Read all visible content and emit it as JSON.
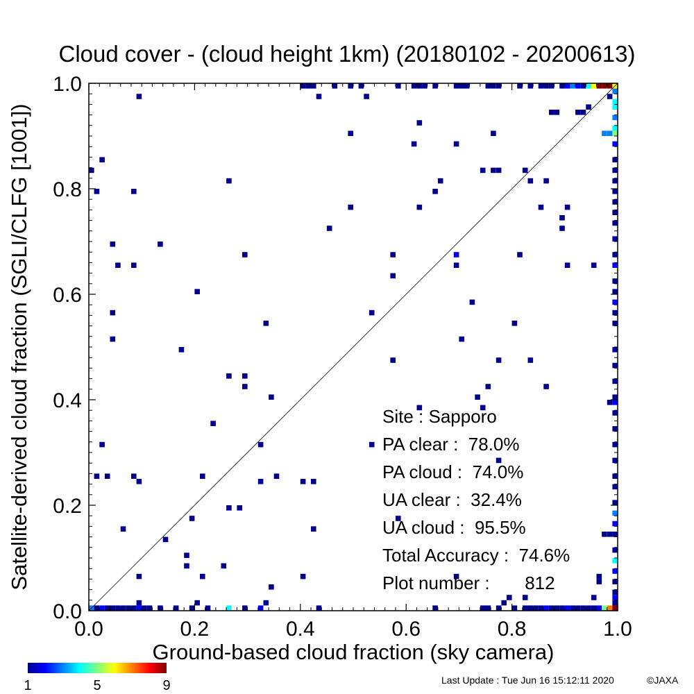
{
  "chart_data": {
    "type": "heatmap",
    "title": "Cloud cover - (cloud height 1km)  (20180102 - 20200613)",
    "xlabel": "Ground-based cloud fraction (sky camera)",
    "ylabel": "Satellite-derived cloud fraction (SGLI/CLFG [1001])",
    "xlim": [
      0,
      1
    ],
    "ylim": [
      0,
      1
    ],
    "xticks": [
      "0.0",
      "0.2",
      "0.4",
      "0.6",
      "0.8",
      "1.0"
    ],
    "yticks": [
      "0.0",
      "0.2",
      "0.4",
      "0.6",
      "0.8",
      "1.0"
    ],
    "diagonal_reference_line": true,
    "colorbar": {
      "min": 1,
      "max": 9,
      "tick_labels": [
        "1",
        "5",
        "9"
      ],
      "colormap": "jet"
    },
    "stats": [
      "Site : Sapporo",
      "PA clear :  78.0%",
      "PA cloud :  74.0%",
      "UA clear :  32.4%",
      "UA cloud :  95.5%",
      "Total Accuracy :  74.6%",
      "Plot number :       812"
    ],
    "points": [
      [
        0.095,
        0.975,
        1
      ],
      [
        0.025,
        0.855,
        1
      ],
      [
        0.005,
        0.835,
        1
      ],
      [
        0.015,
        0.795,
        1
      ],
      [
        0.085,
        0.795,
        1
      ],
      [
        0.265,
        0.815,
        1
      ],
      [
        0.045,
        0.695,
        1
      ],
      [
        0.135,
        0.695,
        1
      ],
      [
        0.055,
        0.655,
        1
      ],
      [
        0.085,
        0.655,
        1
      ],
      [
        0.295,
        0.675,
        1
      ],
      [
        0.205,
        0.605,
        1
      ],
      [
        0.045,
        0.565,
        1
      ],
      [
        0.335,
        0.545,
        1
      ],
      [
        0.045,
        0.515,
        1
      ],
      [
        0.175,
        0.495,
        1
      ],
      [
        0.265,
        0.445,
        1
      ],
      [
        0.295,
        0.445,
        1
      ],
      [
        0.295,
        0.425,
        1
      ],
      [
        0.345,
        0.405,
        1
      ],
      [
        0.235,
        0.355,
        1
      ],
      [
        0.025,
        0.315,
        1
      ],
      [
        0.325,
        0.315,
        1
      ],
      [
        0.015,
        0.255,
        1
      ],
      [
        0.035,
        0.255,
        1
      ],
      [
        0.085,
        0.255,
        1
      ],
      [
        0.095,
        0.245,
        1
      ],
      [
        0.215,
        0.255,
        1
      ],
      [
        0.325,
        0.245,
        1
      ],
      [
        0.355,
        0.255,
        1
      ],
      [
        0.405,
        0.245,
        1
      ],
      [
        0.425,
        0.245,
        1
      ],
      [
        0.265,
        0.195,
        1
      ],
      [
        0.285,
        0.195,
        1
      ],
      [
        0.195,
        0.175,
        1
      ],
      [
        0.065,
        0.155,
        1
      ],
      [
        0.425,
        0.155,
        1
      ],
      [
        0.145,
        0.135,
        1
      ],
      [
        0.185,
        0.105,
        1
      ],
      [
        0.185,
        0.085,
        1
      ],
      [
        0.255,
        0.085,
        1
      ],
      [
        0.095,
        0.065,
        1
      ],
      [
        0.215,
        0.065,
        1
      ],
      [
        0.405,
        0.065,
        1
      ],
      [
        0.345,
        0.045,
        1
      ],
      [
        0.095,
        0.015,
        1
      ],
      [
        0.205,
        0.015,
        1
      ],
      [
        0.335,
        0.015,
        1
      ],
      [
        0.435,
        0.975,
        1
      ],
      [
        0.495,
        0.905,
        1
      ],
      [
        0.525,
        0.975,
        1
      ],
      [
        0.455,
        0.725,
        1
      ],
      [
        0.495,
        0.765,
        1
      ],
      [
        0.535,
        0.565,
        1
      ],
      [
        0.575,
        0.675,
        1
      ],
      [
        0.575,
        0.635,
        1
      ],
      [
        0.575,
        0.475,
        1
      ],
      [
        0.535,
        0.315,
        1
      ],
      [
        0.585,
        0.175,
        1
      ],
      [
        0.625,
        0.925,
        1
      ],
      [
        0.615,
        0.885,
        1
      ],
      [
        0.695,
        0.885,
        1
      ],
      [
        0.625,
        0.765,
        1
      ],
      [
        0.655,
        0.795,
        1
      ],
      [
        0.665,
        0.815,
        1
      ],
      [
        0.745,
        0.835,
        1
      ],
      [
        0.765,
        0.835,
        1
      ],
      [
        0.775,
        0.835,
        1
      ],
      [
        0.765,
        0.905,
        1
      ],
      [
        0.695,
        0.675,
        2
      ],
      [
        0.695,
        0.655,
        1
      ],
      [
        0.725,
        0.585,
        1
      ],
      [
        0.705,
        0.515,
        1
      ],
      [
        0.775,
        0.475,
        1
      ],
      [
        0.735,
        0.405,
        1
      ],
      [
        0.745,
        0.385,
        1
      ],
      [
        0.755,
        0.425,
        1
      ],
      [
        0.625,
        0.385,
        1
      ],
      [
        0.775,
        0.285,
        1
      ],
      [
        0.695,
        0.065,
        1
      ],
      [
        0.825,
        0.835,
        1
      ],
      [
        0.835,
        0.815,
        1
      ],
      [
        0.865,
        0.815,
        1
      ],
      [
        0.855,
        0.765,
        1
      ],
      [
        0.815,
        0.675,
        1
      ],
      [
        0.805,
        0.545,
        1
      ],
      [
        0.835,
        0.475,
        1
      ],
      [
        0.865,
        0.425,
        1
      ],
      [
        0.875,
        0.945,
        1
      ],
      [
        0.885,
        0.945,
        1
      ],
      [
        0.925,
        0.945,
        1
      ],
      [
        0.935,
        0.945,
        1
      ],
      [
        0.945,
        0.955,
        1
      ],
      [
        0.905,
        0.765,
        1
      ],
      [
        0.895,
        0.745,
        1
      ],
      [
        0.895,
        0.725,
        1
      ],
      [
        0.905,
        0.655,
        1
      ],
      [
        0.955,
        0.655,
        1
      ],
      [
        0.785,
        0.015,
        1
      ],
      [
        0.795,
        0.025,
        1
      ],
      [
        0.825,
        0.025,
        1
      ],
      [
        0.955,
        0.025,
        1
      ],
      [
        0.965,
        0.055,
        1
      ],
      [
        0.975,
        0.905,
        3
      ],
      [
        0.985,
        0.905,
        3
      ],
      [
        0.985,
        0.975,
        1
      ],
      [
        0.985,
        0.395,
        1
      ],
      [
        0.985,
        0.145,
        1
      ],
      [
        0.975,
        0.145,
        1
      ],
      [
        0.965,
        0.065,
        1
      ]
    ],
    "top_row": [
      [
        0.405,
        1
      ],
      [
        0.415,
        1
      ],
      [
        0.425,
        1
      ],
      [
        0.465,
        1
      ],
      [
        0.495,
        1
      ],
      [
        0.515,
        1
      ],
      [
        0.585,
        1
      ],
      [
        0.615,
        1
      ],
      [
        0.625,
        1
      ],
      [
        0.635,
        1
      ],
      [
        0.655,
        1
      ],
      [
        0.695,
        1
      ],
      [
        0.705,
        1
      ],
      [
        0.715,
        1
      ],
      [
        0.755,
        1
      ],
      [
        0.765,
        1
      ],
      [
        0.775,
        1
      ],
      [
        0.815,
        1
      ],
      [
        0.835,
        1
      ],
      [
        0.855,
        1
      ],
      [
        0.865,
        1
      ],
      [
        0.875,
        1
      ],
      [
        0.895,
        1
      ],
      [
        0.905,
        2
      ],
      [
        0.915,
        3
      ],
      [
        0.925,
        2
      ],
      [
        0.935,
        1
      ],
      [
        0.945,
        4
      ],
      [
        0.955,
        6
      ],
      [
        0.965,
        9
      ],
      [
        0.975,
        9
      ],
      [
        0.985,
        9
      ],
      [
        0.995,
        9
      ]
    ],
    "bottom_row": [
      [
        0.005,
        3
      ],
      [
        0.015,
        1
      ],
      [
        0.025,
        2
      ],
      [
        0.035,
        1
      ],
      [
        0.045,
        1
      ],
      [
        0.055,
        1
      ],
      [
        0.065,
        1
      ],
      [
        0.075,
        1
      ],
      [
        0.085,
        1
      ],
      [
        0.095,
        2
      ],
      [
        0.105,
        1
      ],
      [
        0.115,
        1
      ],
      [
        0.135,
        1
      ],
      [
        0.165,
        1
      ],
      [
        0.195,
        1
      ],
      [
        0.225,
        1
      ],
      [
        0.265,
        4
      ],
      [
        0.295,
        1
      ],
      [
        0.325,
        2
      ],
      [
        0.435,
        1
      ],
      [
        0.655,
        1
      ],
      [
        0.745,
        1
      ],
      [
        0.755,
        1
      ],
      [
        0.775,
        1
      ],
      [
        0.805,
        1
      ],
      [
        0.825,
        1
      ],
      [
        0.835,
        1
      ],
      [
        0.845,
        1
      ],
      [
        0.855,
        1
      ],
      [
        0.865,
        2
      ],
      [
        0.875,
        1
      ],
      [
        0.885,
        1
      ],
      [
        0.895,
        1
      ],
      [
        0.905,
        2
      ],
      [
        0.915,
        1
      ],
      [
        0.925,
        1
      ],
      [
        0.935,
        1
      ],
      [
        0.945,
        1
      ],
      [
        0.955,
        1
      ],
      [
        0.965,
        2
      ],
      [
        0.975,
        5
      ],
      [
        0.985,
        7
      ],
      [
        0.995,
        9
      ]
    ],
    "right_col": [
      [
        0.995,
        6
      ],
      [
        0.985,
        3
      ],
      [
        0.965,
        4
      ],
      [
        0.955,
        4
      ],
      [
        0.935,
        3
      ],
      [
        0.915,
        4
      ],
      [
        0.905,
        5
      ],
      [
        0.885,
        2
      ],
      [
        0.855,
        1
      ],
      [
        0.835,
        1
      ],
      [
        0.815,
        1
      ],
      [
        0.795,
        1
      ],
      [
        0.775,
        1
      ],
      [
        0.755,
        1
      ],
      [
        0.735,
        1
      ],
      [
        0.705,
        1
      ],
      [
        0.675,
        1
      ],
      [
        0.655,
        2
      ],
      [
        0.625,
        1
      ],
      [
        0.605,
        1
      ],
      [
        0.585,
        2
      ],
      [
        0.565,
        1
      ],
      [
        0.545,
        1
      ],
      [
        0.495,
        1
      ],
      [
        0.465,
        1
      ],
      [
        0.435,
        1
      ],
      [
        0.405,
        1
      ],
      [
        0.395,
        2
      ],
      [
        0.375,
        1
      ],
      [
        0.345,
        1
      ],
      [
        0.315,
        1
      ],
      [
        0.285,
        1
      ],
      [
        0.255,
        1
      ],
      [
        0.235,
        1
      ],
      [
        0.205,
        1
      ],
      [
        0.185,
        3
      ],
      [
        0.165,
        2
      ],
      [
        0.145,
        1
      ],
      [
        0.115,
        1
      ],
      [
        0.095,
        4
      ],
      [
        0.075,
        2
      ],
      [
        0.055,
        1
      ],
      [
        0.035,
        1
      ],
      [
        0.025,
        2
      ],
      [
        0.015,
        1
      ],
      [
        0.005,
        9
      ]
    ]
  },
  "footer": {
    "last_update": "Last Update : Tue Jun 16 15:12:11 2020",
    "copyright": "©JAXA"
  }
}
